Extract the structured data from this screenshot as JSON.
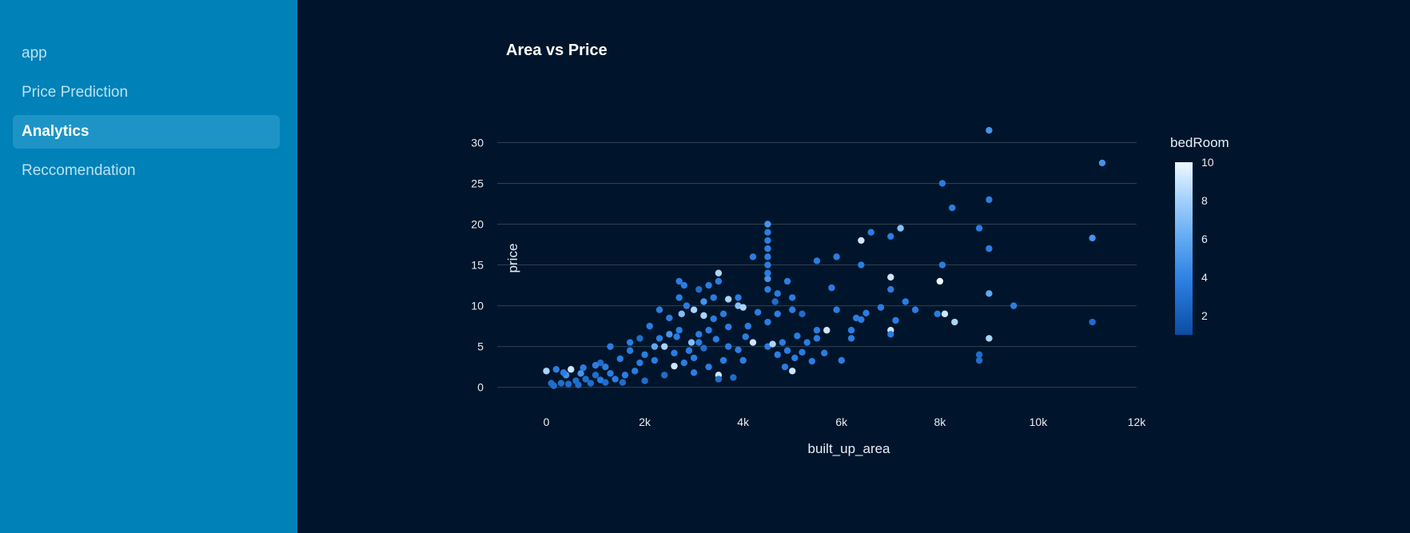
{
  "sidebar": {
    "items": [
      {
        "label": "app",
        "active": false
      },
      {
        "label": "Price Prediction",
        "active": false
      },
      {
        "label": "Analytics",
        "active": true
      },
      {
        "label": "Reccomendation",
        "active": false
      }
    ]
  },
  "colors": {
    "sidebar_bg": "#0081b7",
    "main_bg": "#00152b",
    "active_item_bg": "#1e94c6",
    "grid": "#2e3f52",
    "colorscale": [
      "#0b4da2",
      "#2a7de1",
      "#5fa8f2",
      "#a9d4fb",
      "#eef8ff"
    ]
  },
  "chart_data": {
    "type": "scatter",
    "title": "Area vs Price",
    "xlabel": "built_up_area",
    "ylabel": "price",
    "xlim": [
      -1000,
      12000
    ],
    "ylim": [
      -1.5,
      32
    ],
    "x_ticks": [
      0,
      2000,
      4000,
      6000,
      8000,
      10000,
      12000
    ],
    "x_tick_labels": [
      "0",
      "2k",
      "4k",
      "6k",
      "8k",
      "10k",
      "12k"
    ],
    "y_ticks": [
      0,
      5,
      10,
      15,
      20,
      25,
      30
    ],
    "y_tick_labels": [
      "0",
      "5",
      "10",
      "15",
      "20",
      "25",
      "30"
    ],
    "grid": "horizontal",
    "color_by": "bedRoom",
    "colorbar": {
      "title": "bedRoom",
      "range": [
        1,
        10
      ],
      "ticks": [
        2,
        4,
        6,
        8,
        10
      ],
      "tick_labels": [
        "2",
        "4",
        "6",
        "8",
        "10"
      ]
    },
    "points": [
      [
        9000,
        31.5,
        5
      ],
      [
        11300,
        27.5,
        5
      ],
      [
        8050,
        25,
        4
      ],
      [
        9000,
        23,
        4
      ],
      [
        8250,
        22,
        4
      ],
      [
        4500,
        20,
        5
      ],
      [
        8800,
        19.5,
        4
      ],
      [
        7200,
        19.5,
        7
      ],
      [
        6600,
        19,
        4
      ],
      [
        7000,
        18.5,
        4
      ],
      [
        11100,
        18.3,
        5
      ],
      [
        6400,
        18,
        9
      ],
      [
        9000,
        17,
        4
      ],
      [
        4200,
        16,
        4
      ],
      [
        5900,
        16,
        4
      ],
      [
        5500,
        15.5,
        4
      ],
      [
        8050,
        15,
        4
      ],
      [
        6400,
        15,
        4
      ],
      [
        3500,
        14,
        8
      ],
      [
        7000,
        13.5,
        9
      ],
      [
        4500,
        13.3,
        5
      ],
      [
        2700,
        13,
        4
      ],
      [
        3500,
        13,
        4
      ],
      [
        4900,
        13,
        4
      ],
      [
        8000,
        13,
        10
      ],
      [
        5800,
        12.2,
        4
      ],
      [
        3100,
        12,
        3
      ],
      [
        4500,
        12,
        4
      ],
      [
        7000,
        12,
        4
      ],
      [
        4700,
        11.5,
        4
      ],
      [
        9000,
        11.5,
        6
      ],
      [
        3400,
        11,
        4
      ],
      [
        3900,
        11,
        4
      ],
      [
        5000,
        11,
        4
      ],
      [
        3700,
        10.8,
        8
      ],
      [
        9500,
        10,
        4
      ],
      [
        3900,
        10,
        7
      ],
      [
        7300,
        10.5,
        4
      ],
      [
        7500,
        9.5,
        4
      ],
      [
        5000,
        9.5,
        4
      ],
      [
        5200,
        9,
        3
      ],
      [
        7950,
        9,
        4
      ],
      [
        8100,
        9,
        9
      ],
      [
        8300,
        8,
        8
      ],
      [
        11100,
        8,
        3
      ],
      [
        6400,
        8.3,
        4
      ],
      [
        6200,
        7,
        4
      ],
      [
        6200,
        6,
        4
      ],
      [
        7000,
        7,
        9
      ],
      [
        7000,
        6.5,
        4
      ],
      [
        9000,
        6,
        8
      ],
      [
        5700,
        7,
        9
      ],
      [
        5500,
        7,
        4
      ],
      [
        5500,
        6,
        4
      ],
      [
        4700,
        4,
        4
      ],
      [
        5000,
        2,
        9
      ],
      [
        6000,
        3.3,
        4
      ],
      [
        8800,
        4,
        3
      ],
      [
        8800,
        3.3,
        3
      ],
      [
        4500,
        5,
        4
      ],
      [
        4000,
        3.3,
        4
      ],
      [
        3500,
        1.5,
        9
      ],
      [
        3800,
        1.2,
        3
      ],
      [
        3500,
        1,
        3
      ],
      [
        4800,
        5.5,
        4
      ],
      [
        4200,
        5.5,
        9
      ],
      [
        4600,
        5.3,
        8
      ],
      [
        4900,
        4.5,
        4
      ],
      [
        3200,
        8.8,
        8
      ],
      [
        3000,
        9.5,
        8
      ],
      [
        2700,
        7,
        4
      ],
      [
        2500,
        6.5,
        5
      ],
      [
        2300,
        6,
        4
      ],
      [
        2200,
        5,
        6
      ],
      [
        2400,
        5,
        8
      ],
      [
        2000,
        4,
        4
      ],
      [
        1900,
        3,
        4
      ],
      [
        1800,
        2,
        4
      ],
      [
        1500,
        3.5,
        4
      ],
      [
        1600,
        1.5,
        4
      ],
      [
        1200,
        2.5,
        4
      ],
      [
        1000,
        1.5,
        3
      ],
      [
        800,
        1,
        3
      ],
      [
        600,
        0.8,
        3
      ],
      [
        400,
        1.5,
        5
      ],
      [
        200,
        2.2,
        4
      ],
      [
        0,
        2,
        8
      ],
      [
        300,
        0.5,
        3
      ],
      [
        100,
        0.5,
        3
      ],
      [
        500,
        2.2,
        9
      ],
      [
        700,
        1.7,
        5
      ],
      [
        900,
        0.5,
        3
      ],
      [
        1100,
        0.9,
        4
      ],
      [
        1400,
        1,
        4
      ],
      [
        2600,
        2.6,
        9
      ],
      [
        2800,
        3,
        4
      ],
      [
        3000,
        1.8,
        4
      ],
      [
        3300,
        2.5,
        4
      ],
      [
        2900,
        4.5,
        4
      ],
      [
        3100,
        5.5,
        4
      ],
      [
        2500,
        8.5,
        4
      ],
      [
        2300,
        9.5,
        4
      ],
      [
        2700,
        11,
        4
      ],
      [
        2850,
        10,
        4
      ],
      [
        3300,
        12.5,
        4
      ],
      [
        3600,
        9,
        4
      ],
      [
        3300,
        7,
        4
      ],
      [
        3700,
        5,
        4
      ],
      [
        4100,
        7.5,
        4
      ],
      [
        4500,
        8,
        4
      ],
      [
        4500,
        15,
        4
      ],
      [
        4500,
        17,
        4
      ],
      [
        4500,
        18,
        4
      ],
      [
        4500,
        19,
        4
      ],
      [
        4500,
        16,
        4
      ],
      [
        4500,
        14,
        4
      ],
      [
        4300,
        9.2,
        4
      ],
      [
        4000,
        9.8,
        8
      ],
      [
        2100,
        7.5,
        4
      ],
      [
        1700,
        4.5,
        4
      ],
      [
        1300,
        1.7,
        4
      ],
      [
        1100,
        3,
        3
      ],
      [
        2950,
        5.5,
        7
      ],
      [
        3200,
        4.8,
        3
      ],
      [
        1900,
        6,
        3
      ],
      [
        3400,
        8.4,
        4
      ],
      [
        2800,
        12.5,
        4
      ],
      [
        4650,
        10.5,
        3
      ],
      [
        4700,
        9,
        4
      ],
      [
        4050,
        6.2,
        4
      ],
      [
        5100,
        6.3,
        4
      ],
      [
        5300,
        5.5,
        4
      ],
      [
        5200,
        4.3,
        4
      ],
      [
        5650,
        4.2,
        4
      ],
      [
        5400,
        3.2,
        4
      ],
      [
        5900,
        9.5,
        4
      ],
      [
        6300,
        8.5,
        4
      ],
      [
        6500,
        9.1,
        4
      ],
      [
        6800,
        9.8,
        4
      ],
      [
        7100,
        8.2,
        4
      ],
      [
        5050,
        3.6,
        4
      ],
      [
        4850,
        2.5,
        4
      ],
      [
        3900,
        4.6,
        4
      ],
      [
        3600,
        3.3,
        4
      ],
      [
        3000,
        3.6,
        4
      ],
      [
        2600,
        4.2,
        4
      ],
      [
        2200,
        3.3,
        4
      ],
      [
        2400,
        1.5,
        3
      ],
      [
        2000,
        0.8,
        3
      ],
      [
        1550,
        0.6,
        3
      ],
      [
        1200,
        0.6,
        3
      ],
      [
        650,
        0.3,
        3
      ],
      [
        150,
        0.2,
        3
      ],
      [
        450,
        0.4,
        3
      ],
      [
        750,
        2.4,
        4
      ],
      [
        350,
        1.8,
        4
      ],
      [
        1000,
        2.7,
        4
      ],
      [
        1300,
        5,
        4
      ],
      [
        1700,
        5.5,
        4
      ],
      [
        2650,
        6.2,
        4
      ],
      [
        3100,
        6.5,
        4
      ],
      [
        3450,
        5.9,
        4
      ],
      [
        3700,
        7.4,
        4
      ],
      [
        2750,
        9,
        7
      ],
      [
        3200,
        10.5,
        5
      ]
    ]
  }
}
